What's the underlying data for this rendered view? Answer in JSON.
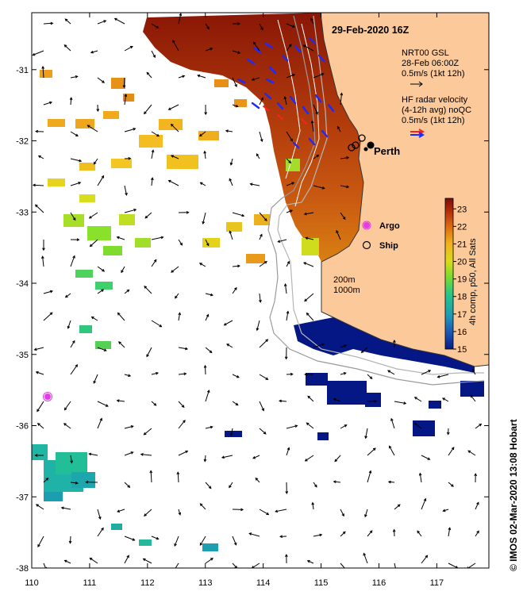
{
  "map": {
    "timestamp": "29-Feb-2020 16Z",
    "city_label": "Perth",
    "x_ticks": [
      "110",
      "111",
      "112",
      "113",
      "114",
      "115",
      "116",
      "117"
    ],
    "y_ticks": [
      "-31",
      "-32",
      "-33",
      "-34",
      "-35",
      "-36",
      "-37",
      "-38"
    ],
    "lon_range": [
      110,
      117.9
    ],
    "lat_range": [
      -38,
      -30.2
    ],
    "colors": {
      "land": "#fbc99a",
      "ocean": "#ffffff",
      "coast_sst_cold": "#051784",
      "argo_marker": "#e53be6",
      "radar_red": "#ff2020",
      "radar_blue": "#1a2bff"
    }
  },
  "legend": {
    "gsl_title": "NRT00 GSL",
    "gsl_date": "28-Feb 06:00Z",
    "gsl_scale": "0.5m/s (1kt 12h)",
    "radar_title": "HF radar velocity",
    "radar_avg": "(4-12h avg) noQC",
    "radar_scale": "0.5m/s (1kt 12h)"
  },
  "markers": {
    "argo_label": "Argo",
    "ship_label": "Ship"
  },
  "isobaths": {
    "label_200": "200m",
    "label_1000": "1000m"
  },
  "colorbar": {
    "ticks": [
      "23",
      "22",
      "21",
      "20",
      "19",
      "18",
      "17",
      "16",
      "15"
    ],
    "label": "4h comp, p50, All Sats",
    "min": 15,
    "max": 23.6
  },
  "credit": "© IMOS 02-Mar-2020 13:08 Hobart"
}
